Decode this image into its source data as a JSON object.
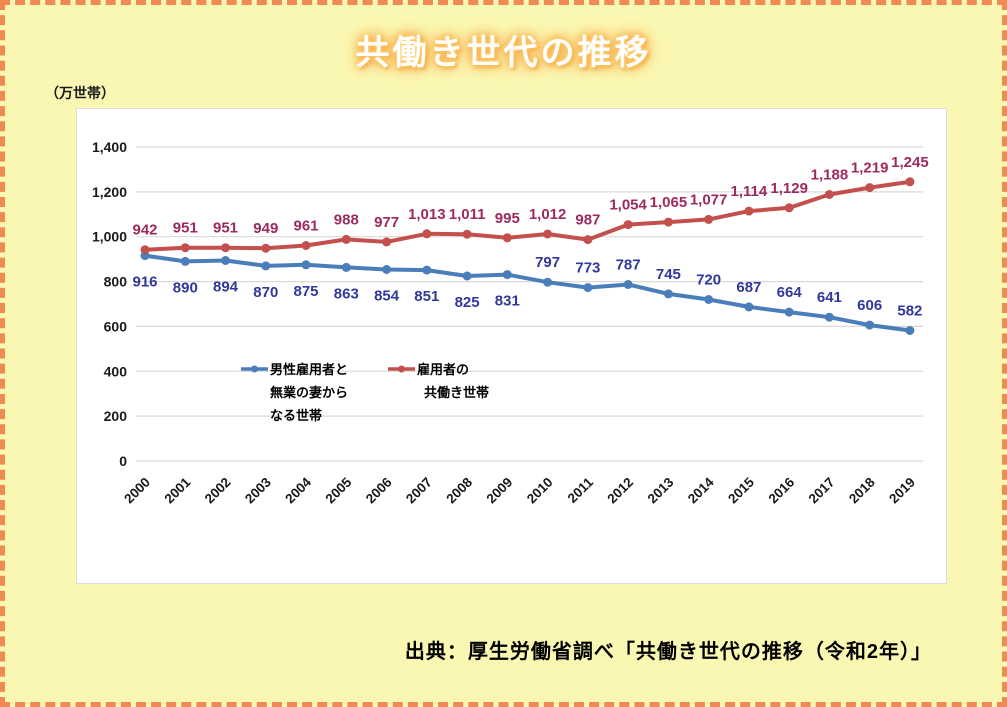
{
  "title": "共働き世代の推移",
  "unit_label": "（万世帯）",
  "source": "出典：厚生労働省調べ「共働き世代の推移（令和2年）」",
  "colors": {
    "page_background": "#FAF7B3",
    "border_dash": "#EE8A52",
    "title_glow": "#F9A845",
    "gridline": "#D9D9D9",
    "axis_text": "#1A1A1A"
  },
  "chart_data": {
    "type": "line",
    "title": "共働き世代の推移",
    "ylabel": "（万世帯）",
    "ylim": [
      0,
      1400
    ],
    "ytick_step": 200,
    "grid": true,
    "legend_position": "inside-center-left",
    "categories": [
      "2000",
      "2001",
      "2002",
      "2003",
      "2004",
      "2005",
      "2006",
      "2007",
      "2008",
      "2009",
      "2010",
      "2011",
      "2012",
      "2013",
      "2014",
      "2015",
      "2016",
      "2017",
      "2018",
      "2019"
    ],
    "series": [
      {
        "name_lines": [
          "男性雇用者と",
          "無業の妻から",
          "なる世帯"
        ],
        "values": [
          916,
          890,
          894,
          870,
          875,
          863,
          854,
          851,
          825,
          831,
          797,
          773,
          787,
          745,
          720,
          687,
          664,
          641,
          606,
          582
        ],
        "line_color": "#4A7EBB",
        "label_color": "#30389B",
        "label_positions": [
          "below",
          "below",
          "below",
          "below",
          "below",
          "below",
          "below",
          "below",
          "below",
          "below",
          "above",
          "above",
          "above",
          "above",
          "above",
          "above",
          "above",
          "above",
          "above",
          "above"
        ]
      },
      {
        "name_lines": [
          "雇用者の",
          "共働き世帯"
        ],
        "values": [
          942,
          951,
          951,
          949,
          961,
          988,
          977,
          1013,
          1011,
          995,
          1012,
          987,
          1054,
          1065,
          1077,
          1114,
          1129,
          1188,
          1219,
          1245
        ],
        "line_color": "#C4504E",
        "label_color": "#9C2A60",
        "label_positions": [
          "above",
          "above",
          "above",
          "above",
          "above",
          "above",
          "above",
          "above",
          "above",
          "above",
          "above",
          "above",
          "above",
          "above",
          "above",
          "above",
          "above",
          "above",
          "above",
          "above"
        ]
      }
    ]
  }
}
